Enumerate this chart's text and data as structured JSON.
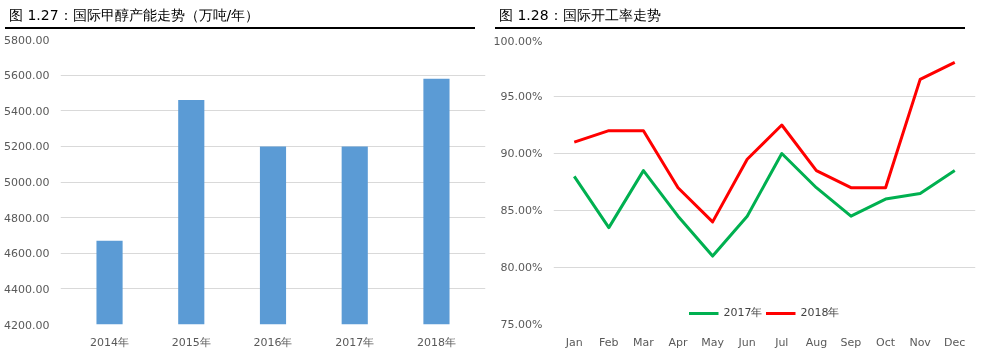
{
  "chart_data": [
    {
      "type": "bar",
      "title": "图 1.27：国际甲醇产能走势（万吨/年）",
      "categories": [
        "2014年",
        "2015年",
        "2016年",
        "2017年",
        "2018年"
      ],
      "values": [
        4670,
        5460,
        5200,
        5200,
        5580
      ],
      "color": "#5b9bd5",
      "ylim": [
        4200,
        5800
      ],
      "yticks": [
        {
          "value": 4200,
          "label": "4200.00"
        },
        {
          "value": 4400,
          "label": "4400.00"
        },
        {
          "value": 4600,
          "label": "4600.00"
        },
        {
          "value": 4800,
          "label": "4800.00"
        },
        {
          "value": 5000,
          "label": "5000.00"
        },
        {
          "value": 5200,
          "label": "5200.00"
        },
        {
          "value": 5400,
          "label": "5400.00"
        },
        {
          "value": 5600,
          "label": "5600.00"
        },
        {
          "value": 5800,
          "label": "5800.00"
        }
      ],
      "grid": "y"
    },
    {
      "type": "line",
      "title": "图 1.28：国际开工率走势",
      "categories": [
        "Jan",
        "Feb",
        "Mar",
        "Apr",
        "May",
        "Jun",
        "Jul",
        "Aug",
        "Sep",
        "Oct",
        "Nov",
        "Dec"
      ],
      "series": [
        {
          "name": "2017年",
          "color": "#00b050",
          "values": [
            88,
            83.5,
            88.5,
            84.5,
            81,
            84.5,
            90,
            87,
            84.5,
            86,
            86.5,
            88.5
          ]
        },
        {
          "name": "2018年",
          "color": "#ff0000",
          "values": [
            91,
            92,
            92,
            87,
            84,
            89.5,
            92.5,
            88.5,
            87,
            87,
            96.5,
            98
          ]
        }
      ],
      "ylim": [
        75,
        100
      ],
      "yticks": [
        {
          "value": 75,
          "label": "75.00%"
        },
        {
          "value": 80,
          "label": "80.00%"
        },
        {
          "value": 85,
          "label": "85.00%"
        },
        {
          "value": 90,
          "label": "90.00%"
        },
        {
          "value": 95,
          "label": "95.00%"
        },
        {
          "value": 100,
          "label": "100.00%"
        }
      ],
      "grid": "y",
      "legend": "bottom",
      "marker": "none",
      "line_style": "solid"
    }
  ]
}
